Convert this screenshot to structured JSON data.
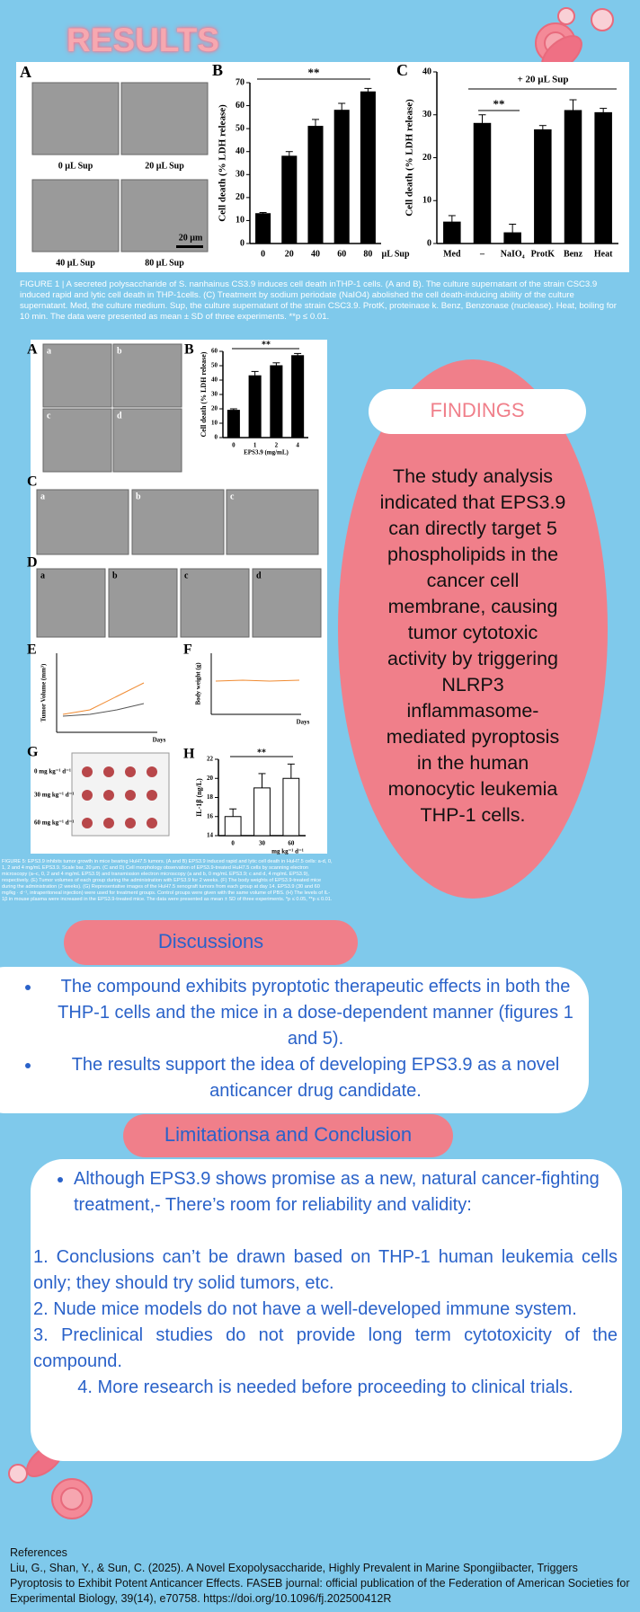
{
  "results_title": "RESULTS",
  "figure_1": {
    "panel_letters": [
      "A",
      "B",
      "C"
    ],
    "photo_labels": [
      "0 µL Sup",
      "20 µL Sup",
      "40 µL Sup",
      "80 µL Sup"
    ],
    "scale_bar": "20 µm",
    "chart_b": {
      "type": "bar",
      "y_label": "Cell death (% LDH release)",
      "categories": [
        "0",
        "20",
        "40",
        "60",
        "80"
      ],
      "x_label": "µL Sup",
      "values": [
        13,
        38,
        51,
        58,
        66
      ],
      "errors": [
        0.5,
        2,
        3,
        3,
        1.5
      ],
      "ylim": [
        0,
        70
      ],
      "yticks": [
        0,
        10,
        20,
        30,
        40,
        50,
        60,
        70
      ],
      "color": "#000000",
      "annotations": [
        "**"
      ]
    },
    "chart_c": {
      "type": "bar",
      "y_label": "Cell death (% LDH release)",
      "categories": [
        "Med",
        "–",
        "NaIO₄",
        "ProtK",
        "Benz",
        "Heat"
      ],
      "values": [
        5,
        28,
        2.5,
        26.5,
        31,
        30.5
      ],
      "errors": [
        1.5,
        2,
        2,
        1,
        2.5,
        1
      ],
      "ylim": [
        0,
        40
      ],
      "yticks": [
        0,
        10,
        20,
        30,
        40
      ],
      "color": "#000000",
      "annotations": [
        "**",
        "+ 20 µL Sup"
      ]
    },
    "caption": "FIGURE 1 | A secreted polysaccharide of S. nanhainus CS3.9 induces cell death inTHP-1 cells. (A and B). The culture supernatant of the strain CSC3.9 induced rapid and lytic cell death in THP-1cells. (C) Treatment by sodium periodate (NaIO4) abolished the cell death-inducing ability of the culture supernatant. Med, the culture medium. Sup, the culture supernatant of the strain CSC3.9. ProtK, proteinase k. Benz, Benzonase (nuclease). Heat, boiling for 10 min. The data were presented as mean ± SD of three experiments. **p ≤ 0.01."
  },
  "figure_5": {
    "panel_letters": [
      "A",
      "B",
      "C",
      "D",
      "E",
      "F",
      "G",
      "H"
    ],
    "sub_letters": [
      "a",
      "b",
      "c",
      "d"
    ],
    "chart_b": {
      "type": "bar",
      "y_label": "Cell death (% LDH release)",
      "categories": [
        "0",
        "1",
        "2",
        "4"
      ],
      "x_label": "EPS3.9 (mg/mL)",
      "values": [
        19,
        43,
        50,
        57
      ],
      "errors": [
        1,
        3,
        2,
        1.5
      ],
      "ylim": [
        0,
        60
      ],
      "yticks": [
        0,
        10,
        20,
        30,
        40,
        50,
        60
      ],
      "color": "#000000",
      "annotations": [
        "**"
      ]
    },
    "panel_e": {
      "y_label": "Tumor Volume (mm³)",
      "x_label": "Days"
    },
    "panel_f": {
      "y_label": "Body weight (g)",
      "x_label": "Days"
    },
    "dose_labels": [
      "0 mg kg⁻¹ d⁻¹",
      "30 mg kg⁻¹ d⁻¹",
      "60 mg kg⁻¹ d⁻¹"
    ],
    "chart_h": {
      "type": "bar",
      "y_label": "IL-1β (ng/L)",
      "categories": [
        "0",
        "30",
        "60"
      ],
      "x_label": "mg kg⁻¹ d⁻¹",
      "values": [
        16,
        19,
        20
      ],
      "errors": [
        0.8,
        1.5,
        1.5
      ],
      "ylim": [
        14,
        22
      ],
      "yticks": [
        14,
        16,
        18,
        20,
        22
      ],
      "color": "#ffffff",
      "annotations": [
        "**"
      ]
    },
    "caption": "FIGURE 5: EPS3.9 inhibits tumor growth in mice bearing HuH7.5 tumors. (A and B) EPS3.9 induced rapid and lytic cell death in HuH7.5 cells: a-d, 0, 1, 2 and 4 mg/mL EPS3.9. Scale bar, 20 μm. (C and D) Cell morphology observation of EPS3.9-treated HuH7.5 cells by scanning electron microscopy (a–c, 0, 2 and 4 mg/mL EPS3.9) and transmission electron microscopy (a and b, 0 mg/mL EPS3.9; c and d, 4 mg/mL EPS3.9), respectively. (E) Tumor volumes of each group during the administration with EPS3.9 for 2 weeks. (F) The body weights of EPS3.9-treated mice during the administration (2 weeks). (G) Representative images of the HuH7.5 xenograft tumors from each group at day 14. EPS3.9 (30 and 60 mg/kg · d⁻¹, intraperitoneal injection) were used for treatment groups. Control groups were given with the same volume of PBS. (H) The levels of IL-1β in mouse plasma were increased in the EPS3.9-treated mice. The data were presented as mean ± SD of three experiments. *p ≤ 0.05, **p ≤ 0.01."
  },
  "findings": {
    "heading": "FINDINGS",
    "lines": [
      "The study analysis",
      "indicated that EPS3.9",
      "can directly target 5",
      "phospholipids in the",
      "cancer cell",
      "membrane, causing",
      "tumor cytotoxic",
      "activity by triggering",
      "NLRP3",
      "inflammasome-",
      "mediated pyroptosis",
      "in the human",
      "monocytic leukemia",
      "THP-1 cells."
    ]
  },
  "discussions": {
    "heading": "Discussions",
    "bullets": [
      "The compound exhibits pyroptotic therapeutic effects in both the THP-1 cells and the mice in a dose-dependent manner (figures 1 and 5).",
      "The results support the idea of developing EPS3.9 as a novel anticancer drug candidate."
    ]
  },
  "limitations": {
    "heading": "Limitationsa and Conclusion",
    "bullet": "Although EPS3.9 shows promise as a new, natural cancer-fighting treatment,- There’s room for reliability and validity:",
    "points": [
      "1. Conclusions can’t be drawn based on THP-1 human leukemia cells only; they should try solid tumors, etc.",
      "2. Nude mice models do not have a well-developed immune system.",
      "3. Preclinical studies do not provide long term cytotoxicity of the compound.",
      "4. More research is needed before proceeding to clinical trials."
    ]
  },
  "references": {
    "heading": "References",
    "text": "Liu, G., Shan, Y., & Sun, C. (2025). A Novel Exopolysaccharide, Highly Prevalent in Marine Spongiibacter, Triggers Pyroptosis to Exhibit Potent Anticancer Effects. FASEB journal: official publication of the Federation of American Societies for Experimental Biology, 39(14), e70758. https://doi.org/10.1096/fj.202500412R"
  }
}
